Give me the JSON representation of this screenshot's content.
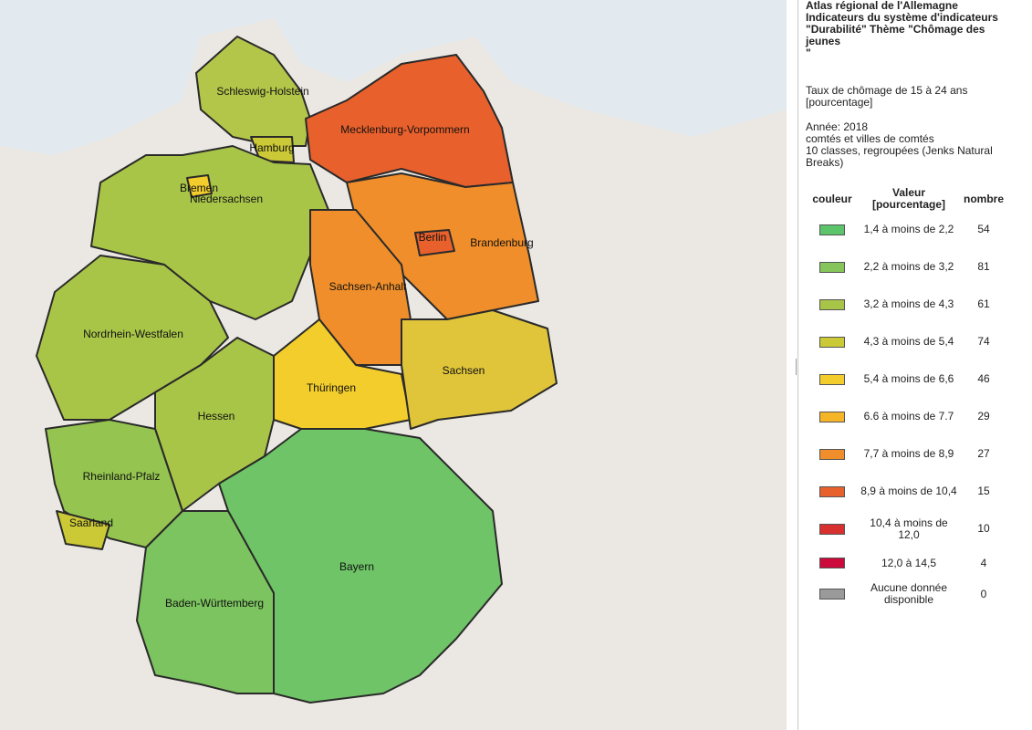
{
  "header": {
    "title": "Atlas régional de l'Allemagne Indicateurs du système d'indicateurs \"Durabilité\" Thème \"Chômage des jeunes\n\"",
    "indicator": "Taux de chômage de 15 à 24 ans [pourcentage]",
    "year": "Année: 2018",
    "level": "comtés et villes de comtés",
    "classes": "10 classes, regroupées (Jenks Natural Breaks)"
  },
  "legend": {
    "headers": [
      "couleur",
      "Valeur [pourcentage]",
      "nombre"
    ],
    "rows": [
      {
        "label": "1,4 à moins de 2,2",
        "count": 54,
        "color": "#5cc46b"
      },
      {
        "label": "2,2 à moins de 3,2",
        "count": 81,
        "color": "#86c55a"
      },
      {
        "label": "3,2 à moins de 4,3",
        "count": 61,
        "color": "#a9c548"
      },
      {
        "label": "4,3 à moins de 5,4",
        "count": 74,
        "color": "#ccc937"
      },
      {
        "label": "5,4 à moins de 6,6",
        "count": 46,
        "color": "#f2cd2c"
      },
      {
        "label": "6.6 à moins de 7.7",
        "count": 29,
        "color": "#f6b526"
      },
      {
        "label": "7,7 à moins de 8,9",
        "count": 27,
        "color": "#ef8e2a"
      },
      {
        "label": "8,9 à moins de 10,4",
        "count": 15,
        "color": "#e8602c"
      },
      {
        "label": "10,4 à moins de 12,0",
        "count": 10,
        "color": "#d8302f"
      },
      {
        "label": "12,0 à 14,5",
        "count": 4,
        "color": "#cc0a3c"
      },
      {
        "label": "Aucune donnée disponible",
        "count": 0,
        "color": "#9a9a9a"
      }
    ]
  },
  "map": {
    "regions": [
      "Schleswig-Holstein",
      "Hamburg",
      "Mecklenburg-Vorpommern",
      "Bremen",
      "Niedersachsen",
      "Berlin",
      "Brandenburg",
      "Sachsen-Anhalt",
      "Nordrhein-Westfalen",
      "Hessen",
      "Thüringen",
      "Sachsen",
      "Rheinland-Pfalz",
      "Saarland",
      "Bayern",
      "Baden-Württemberg"
    ]
  }
}
